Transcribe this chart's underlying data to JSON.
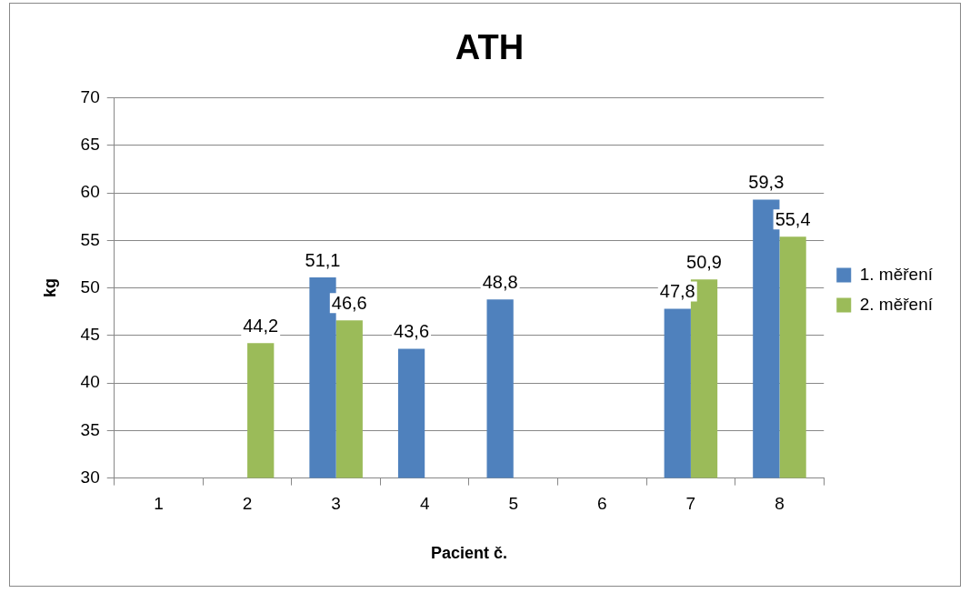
{
  "chart_data": {
    "type": "bar",
    "title": "ATH",
    "xlabel": "Pacient č.",
    "ylabel": "kg",
    "categories": [
      "1",
      "2",
      "3",
      "4",
      "5",
      "6",
      "7",
      "8"
    ],
    "series": [
      {
        "name": "1. měření",
        "color": "#4f81bd",
        "values": [
          null,
          null,
          51.1,
          43.6,
          48.8,
          null,
          47.8,
          59.3
        ],
        "value_labels": [
          null,
          null,
          "51,1",
          "43,6",
          "48,8",
          null,
          "47,8",
          "59,3"
        ]
      },
      {
        "name": "2. měření",
        "color": "#9bbb59",
        "values": [
          null,
          44.2,
          46.6,
          null,
          null,
          null,
          50.9,
          55.4
        ],
        "value_labels": [
          null,
          "44,2",
          "46,6",
          null,
          null,
          null,
          "50,9",
          "55,4"
        ]
      }
    ],
    "ylim": [
      30,
      70
    ],
    "yticks": [
      30,
      35,
      40,
      45,
      50,
      55,
      60,
      65,
      70
    ],
    "grid": "y",
    "legend": "right"
  }
}
